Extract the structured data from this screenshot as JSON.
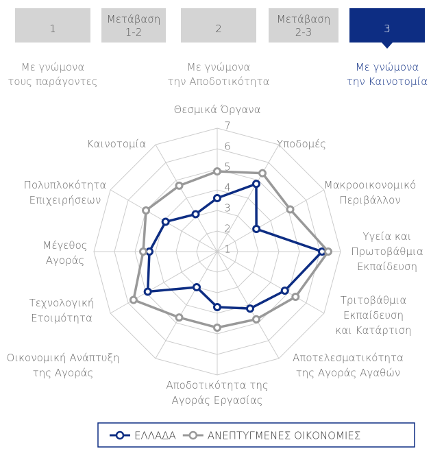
{
  "header": {
    "steps": [
      "1",
      "Μετάβαση\n1-2",
      "2",
      "Μετάβαση\n2-3",
      "3"
    ],
    "captions": [
      "Με γνώμονα\nτους παράγοντες",
      "Με γνώμονα\nτην Αποδοτικότητα",
      "Με γνώμονα\nτην Καινοτομία"
    ]
  },
  "chart_data": {
    "type": "radar",
    "categories": [
      "Θεσμικά Όργανα",
      "Υποδομές",
      "Μακροοικονομικό\nΠεριβάλλον",
      "Υγεία και\nΠρωτοβάθμια\nΕκπαίδευση",
      "Τριτοβάθμια\nΕκπαίδευση\nκαι Κατάρτιση",
      "Αποτελεσματικότητα\nτης Αγοράς Αγαθών",
      "Αποδοτικότητα της\nΑγοράς Εργασίας",
      "Οικονομική Ανάπτυξη\nτης Αγοράς",
      "Τεχνολογική\nΕτοιμότητα",
      "Μέγεθος\nΑγοράς",
      "Πολυπλοκότητα\nΕπιχειρήσεων",
      "Καινοτομία"
    ],
    "series": [
      {
        "name": "ΕΛΛΑΔΑ",
        "color": "#0d2d83",
        "values": [
          3.6,
          4.8,
          3.2,
          6.1,
          4.8,
          4.2,
          3.7,
          3.0,
          4.9,
          4.3,
          3.9,
          3.1
        ]
      },
      {
        "name": "ΑΝΕΠΤΥΓΜΕΝΕΣ ΟΙΚΟΝΟΜΙΕΣ",
        "color": "#999999",
        "values": [
          4.9,
          5.4,
          5.1,
          6.4,
          5.4,
          4.8,
          4.7,
          4.7,
          5.7,
          4.6,
          5.0,
          4.7
        ]
      }
    ],
    "ylim": [
      1,
      7
    ],
    "yticks": [
      1,
      2,
      3,
      4,
      5,
      6,
      7
    ],
    "grid": true
  }
}
